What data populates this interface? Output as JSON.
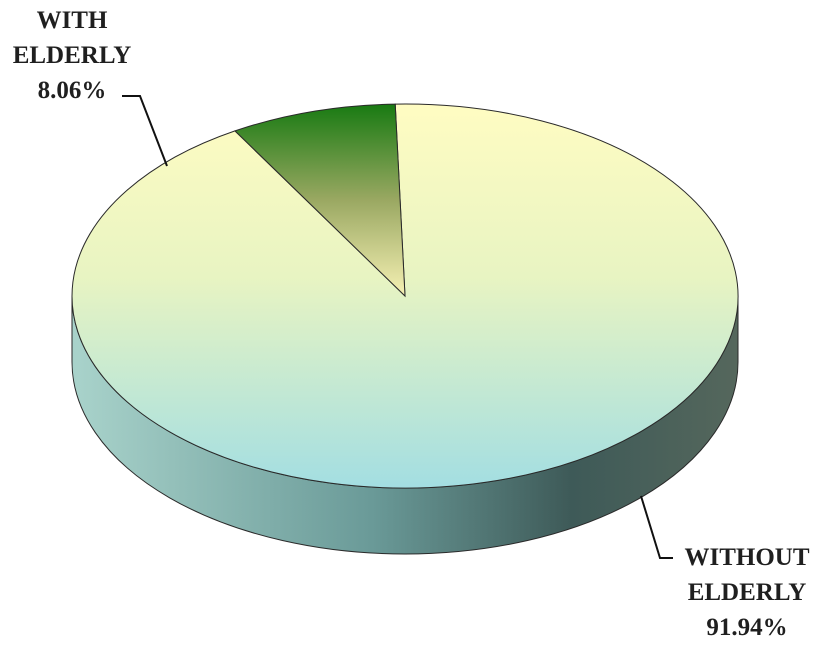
{
  "chart_data": {
    "type": "pie",
    "title": "",
    "style": "3d",
    "slices": [
      {
        "label_lines": [
          "WITH",
          "ELDERLY"
        ],
        "percent_text": "8.06%",
        "value": 8.06,
        "color": "#1a7a10"
      },
      {
        "label_lines": [
          "WITHOUT",
          "ELDERLY"
        ],
        "percent_text": "91.94%",
        "value": 91.94,
        "color": "#a6dde0"
      }
    ]
  }
}
